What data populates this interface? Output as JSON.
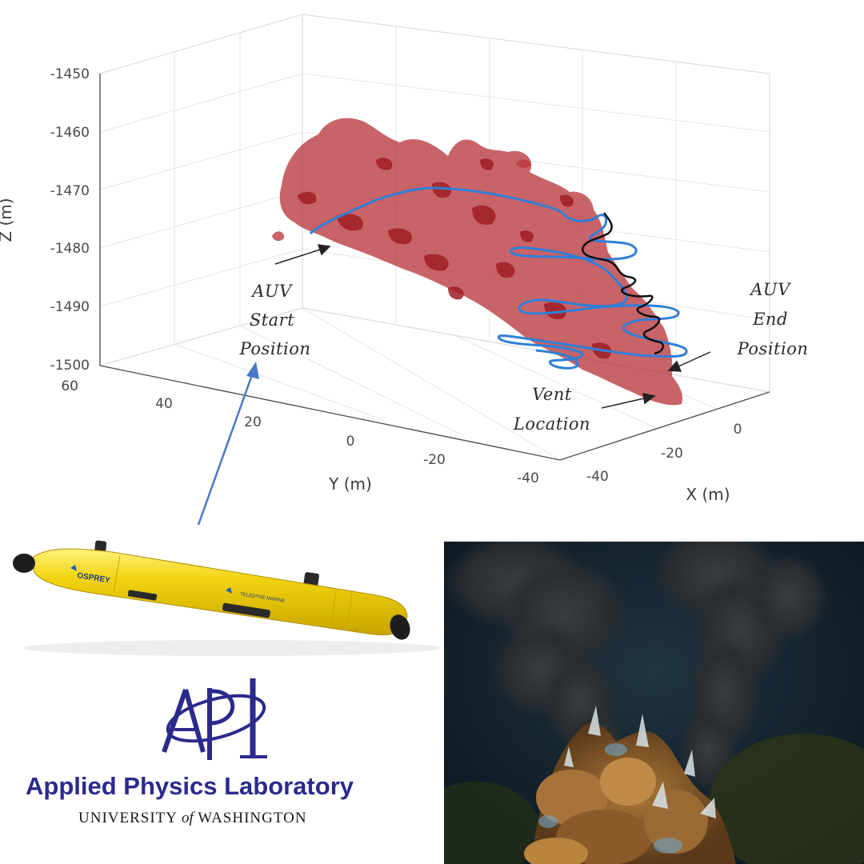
{
  "plot": {
    "z_ticks": [
      "-1450",
      "-1460",
      "-1470",
      "-1480",
      "-1490",
      "-1500"
    ],
    "z_label": "Z (m)",
    "y_ticks": [
      "60",
      "40",
      "20",
      "0",
      "-20",
      "-40"
    ],
    "y_label": "Y (m)",
    "x_ticks": [
      "-40",
      "-20",
      "0"
    ],
    "x_label": "X (m)",
    "annotations": {
      "start": [
        "AUV",
        "Start",
        "Position"
      ],
      "end": [
        "AUV",
        "End",
        "Position"
      ],
      "vent": [
        "Vent",
        "Location"
      ]
    },
    "colors": {
      "plume": "#b5232a",
      "path_blue": "#2f7fd8",
      "path_black": "#111111",
      "pointer_arrow": "#4a78c8"
    }
  },
  "auv": {
    "name_label": "OSPREY",
    "small_print": "TELEDYNE MARINE",
    "body_color": "#f2d30f"
  },
  "logo": {
    "name": "Applied Physics Laboratory",
    "university_pre": "UNIVERSITY",
    "university_of": "of",
    "university_post": "WASHINGTON",
    "color": "#2b2a8c"
  },
  "photo": {
    "subject": "hydrothermal-vent-black-smoker"
  }
}
